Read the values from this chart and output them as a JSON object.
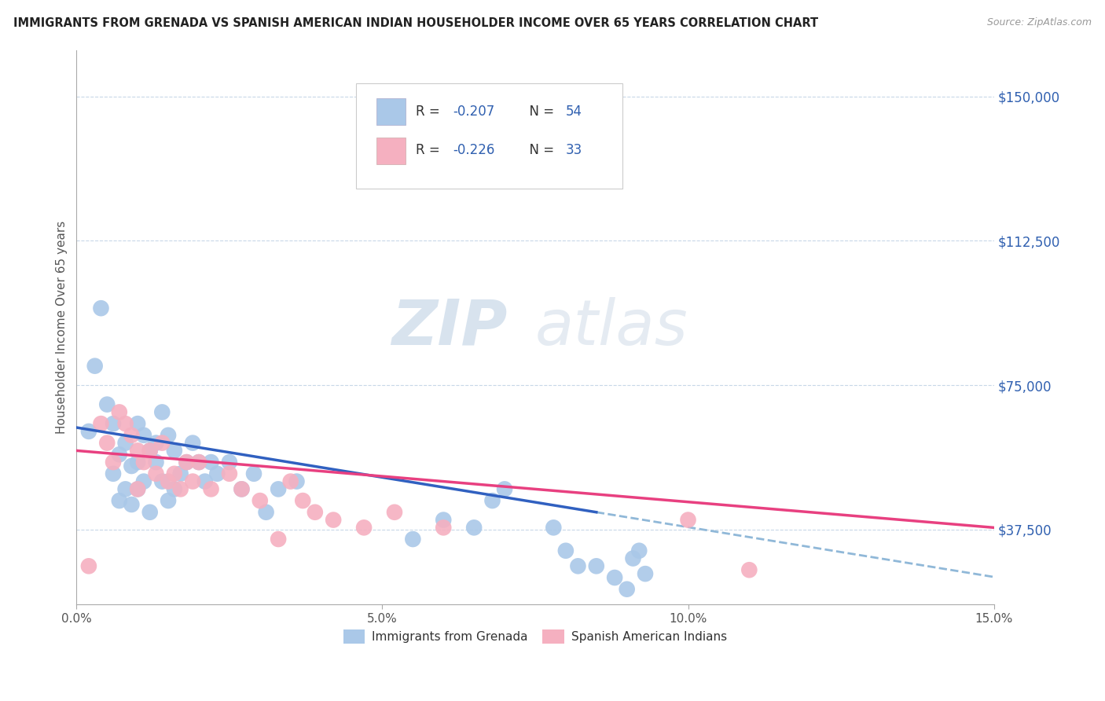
{
  "title": "IMMIGRANTS FROM GRENADA VS SPANISH AMERICAN INDIAN HOUSEHOLDER INCOME OVER 65 YEARS CORRELATION CHART",
  "source": "Source: ZipAtlas.com",
  "ylabel": "Householder Income Over 65 years",
  "xlim": [
    0,
    0.15
  ],
  "ylim": [
    18000,
    162000
  ],
  "yticks": [
    37500,
    75000,
    112500,
    150000
  ],
  "ytick_labels": [
    "$37,500",
    "$75,000",
    "$112,500",
    "$150,000"
  ],
  "xticks": [
    0.0,
    0.05,
    0.1,
    0.15
  ],
  "xtick_labels": [
    "0.0%",
    "5.0%",
    "10.0%",
    "15.0%"
  ],
  "watermark_zip": "ZIP",
  "watermark_atlas": "atlas",
  "blue_R": "-0.207",
  "blue_N": "54",
  "pink_R": "-0.226",
  "pink_N": "33",
  "blue_color": "#aac8e8",
  "pink_color": "#f5b0c0",
  "trend_blue_color": "#3060c0",
  "trend_pink_color": "#e84080",
  "trend_dash_color": "#90b8d8",
  "background": "#ffffff",
  "grid_color": "#c8d8e8",
  "blue_label": "Immigrants from Grenada",
  "pink_label": "Spanish American Indians",
  "blue_scatter_x": [
    0.002,
    0.003,
    0.004,
    0.005,
    0.006,
    0.006,
    0.007,
    0.007,
    0.008,
    0.008,
    0.009,
    0.009,
    0.01,
    0.01,
    0.01,
    0.011,
    0.011,
    0.012,
    0.012,
    0.013,
    0.013,
    0.014,
    0.014,
    0.015,
    0.015,
    0.016,
    0.016,
    0.017,
    0.018,
    0.019,
    0.02,
    0.021,
    0.022,
    0.023,
    0.025,
    0.027,
    0.029,
    0.031,
    0.033,
    0.036,
    0.055,
    0.06,
    0.065,
    0.068,
    0.07,
    0.078,
    0.08,
    0.082,
    0.085,
    0.088,
    0.09,
    0.091,
    0.092,
    0.093
  ],
  "blue_scatter_y": [
    63000,
    80000,
    95000,
    70000,
    52000,
    65000,
    57000,
    45000,
    60000,
    48000,
    54000,
    44000,
    65000,
    55000,
    48000,
    62000,
    50000,
    58000,
    42000,
    60000,
    55000,
    68000,
    50000,
    62000,
    45000,
    58000,
    48000,
    52000,
    55000,
    60000,
    55000,
    50000,
    55000,
    52000,
    55000,
    48000,
    52000,
    42000,
    48000,
    50000,
    35000,
    40000,
    38000,
    45000,
    48000,
    38000,
    32000,
    28000,
    28000,
    25000,
    22000,
    30000,
    32000,
    26000
  ],
  "pink_scatter_x": [
    0.002,
    0.004,
    0.005,
    0.006,
    0.007,
    0.008,
    0.009,
    0.01,
    0.01,
    0.011,
    0.012,
    0.013,
    0.014,
    0.015,
    0.016,
    0.017,
    0.018,
    0.019,
    0.02,
    0.022,
    0.025,
    0.027,
    0.03,
    0.033,
    0.035,
    0.037,
    0.039,
    0.042,
    0.047,
    0.052,
    0.06,
    0.1,
    0.11
  ],
  "pink_scatter_y": [
    28000,
    65000,
    60000,
    55000,
    68000,
    65000,
    62000,
    58000,
    48000,
    55000,
    58000,
    52000,
    60000,
    50000,
    52000,
    48000,
    55000,
    50000,
    55000,
    48000,
    52000,
    48000,
    45000,
    35000,
    50000,
    45000,
    42000,
    40000,
    38000,
    42000,
    38000,
    40000,
    27000
  ],
  "trend_blue_x0": 0.0,
  "trend_blue_y0": 64000,
  "trend_blue_x1": 0.085,
  "trend_blue_y1": 42000,
  "trend_blue_dash_x1": 0.15,
  "trend_blue_dash_y1": 23000,
  "trend_pink_x0": 0.0,
  "trend_pink_y0": 58000,
  "trend_pink_x1": 0.15,
  "trend_pink_y1": 38000
}
